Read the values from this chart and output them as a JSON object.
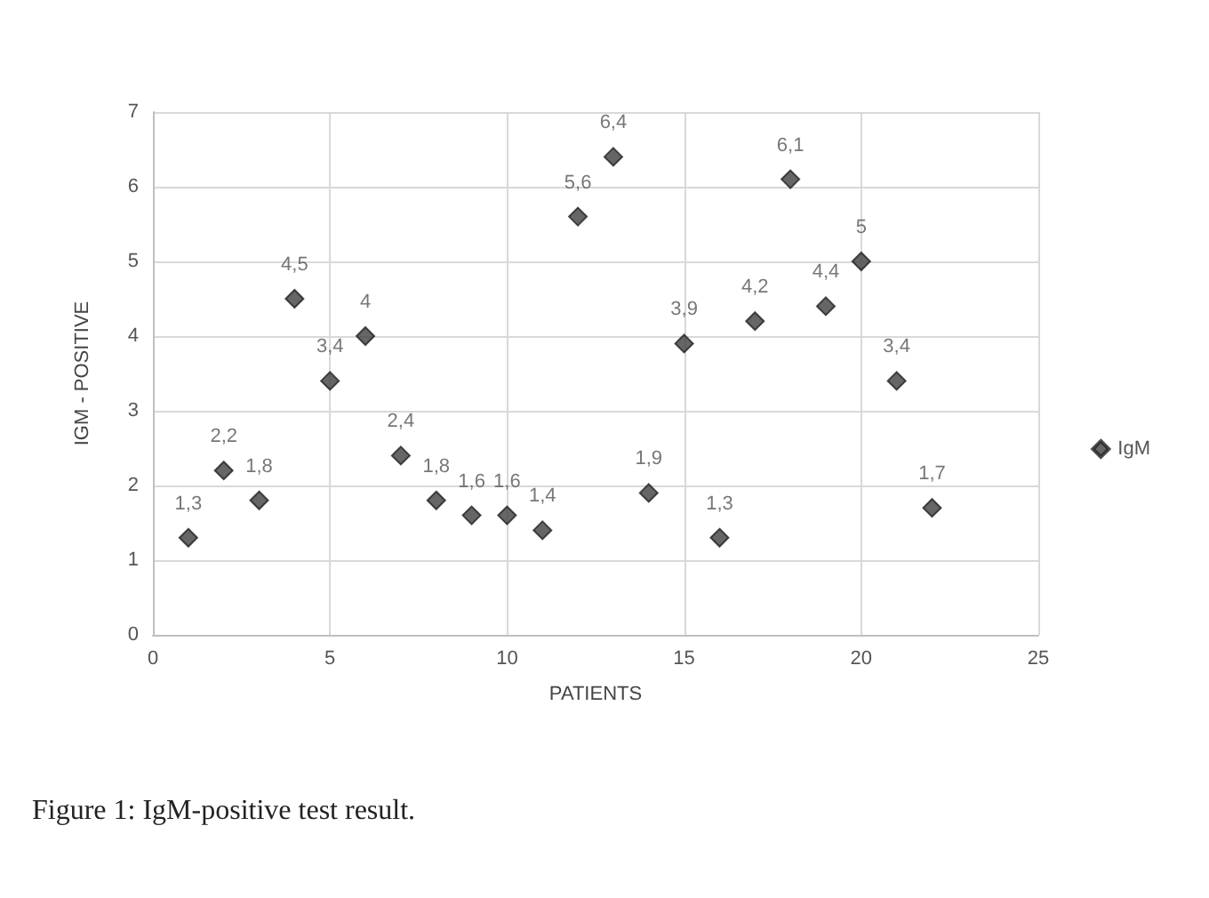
{
  "chart_data": {
    "type": "scatter",
    "xlabel": "PATIENTS",
    "ylabel": "IGM - POSITIVE",
    "x": [
      1,
      2,
      3,
      4,
      5,
      6,
      7,
      8,
      9,
      10,
      11,
      12,
      13,
      14,
      15,
      16,
      17,
      18,
      19,
      20,
      21,
      22
    ],
    "series": [
      {
        "name": "IgM",
        "color": "#404040",
        "values": [
          1.3,
          2.2,
          1.8,
          4.5,
          3.4,
          4,
          2.4,
          1.8,
          1.6,
          1.6,
          1.4,
          5.6,
          6.4,
          1.9,
          3.9,
          1.3,
          4.2,
          6.1,
          4.4,
          5,
          3.4,
          1.7
        ],
        "value_labels": [
          "1,3",
          "2,2",
          "1,8",
          "4,5",
          "3,4",
          "4",
          "2,4",
          "1,8",
          "1,6",
          "1,6",
          "1,4",
          "5,6",
          "6,4",
          "1,9",
          "3,9",
          "1,3",
          "4,2",
          "6,1",
          "4,4",
          "5",
          "3,4",
          "1,7"
        ]
      }
    ],
    "xlim": [
      0,
      25
    ],
    "xticks": [
      0,
      5,
      10,
      15,
      20,
      25
    ],
    "ylim": [
      0,
      7
    ],
    "yticks": [
      0,
      1,
      2,
      3,
      4,
      5,
      6,
      7
    ],
    "grid": true,
    "legend": "right",
    "marker": "diamond",
    "annotations": [
      "Figure 1: IgM-positive test result."
    ]
  }
}
